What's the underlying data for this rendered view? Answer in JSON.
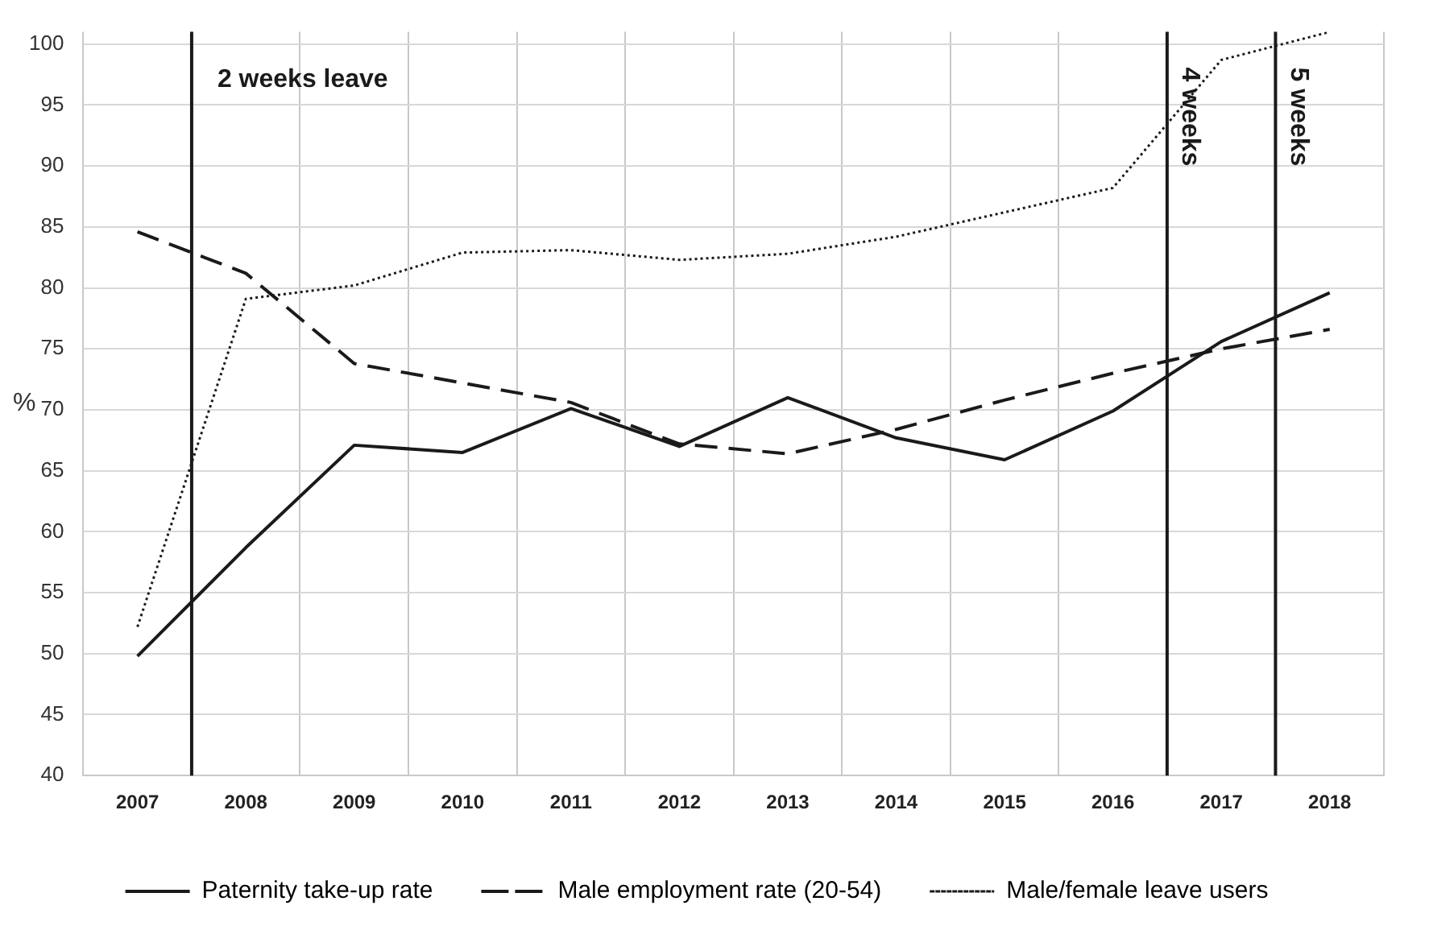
{
  "chart_data": {
    "type": "line",
    "ylabel": "%",
    "x": [
      2007,
      2008,
      2009,
      2010,
      2011,
      2012,
      2013,
      2014,
      2015,
      2016,
      2017,
      2018
    ],
    "xlim": [
      2006.5,
      2018.5
    ],
    "xticks": [
      2007,
      2008,
      2009,
      2010,
      2011,
      2012,
      2013,
      2014,
      2015,
      2016,
      2017,
      2018
    ],
    "ylim": [
      40,
      101
    ],
    "yticks": [
      40,
      45,
      50,
      55,
      60,
      65,
      70,
      75,
      80,
      85,
      90,
      95,
      100
    ],
    "series": [
      {
        "name": "Paternity take-up rate",
        "color": "#1a1a1a",
        "line_style": "solid",
        "values": [
          49.8,
          58.7,
          67.1,
          66.5,
          70.1,
          67.0,
          71.0,
          67.7,
          65.9,
          69.9,
          75.6,
          79.6
        ]
      },
      {
        "name": "Male employment rate (20-54)",
        "color": "#1a1a1a",
        "line_style": "dashed",
        "values": [
          84.6,
          81.2,
          73.8,
          72.2,
          70.6,
          67.2,
          66.4,
          68.4,
          70.8,
          73.0,
          75.0,
          76.6
        ]
      },
      {
        "name": "Male/female leave users",
        "color": "#1a1a1a",
        "line_style": "dotted",
        "values": [
          52.2,
          79.1,
          80.2,
          82.9,
          83.1,
          82.3,
          82.8,
          84.2,
          86.2,
          88.2,
          98.7,
          101.0
        ]
      }
    ],
    "ref_lines": [
      {
        "axis": "x",
        "value": 2007.5,
        "label": "2 weeks leave",
        "color": "#1a1a1a"
      },
      {
        "axis": "x",
        "value": 2016.5,
        "label": "4 weeks",
        "color": "#1a1a1a"
      },
      {
        "axis": "x",
        "value": 2017.5,
        "label": "5 weeks",
        "color": "#1a1a1a"
      }
    ],
    "grid": true,
    "legend": "bottom",
    "marker": "none"
  }
}
